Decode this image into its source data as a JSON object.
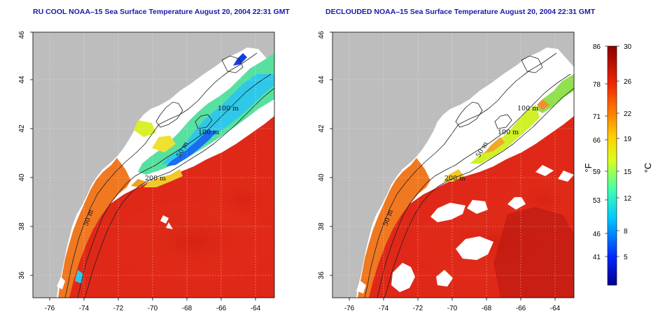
{
  "titles": {
    "left": "RU COOL NOAA–15 Sea Surface Temperature August 20, 2004 22:31 GMT",
    "right": "DECLOUDED NOAA–15 Sea Surface Temperature August 20, 2004 22:31 GMT"
  },
  "axes": {
    "lon_ticks": [
      "-76",
      "-74",
      "-72",
      "-70",
      "-68",
      "-66",
      "-64"
    ],
    "lat_ticks": [
      "36",
      "38",
      "40",
      "42",
      "44",
      "46"
    ]
  },
  "contours": {
    "label_100": "100 m",
    "label_200": "200 m",
    "label_50": "50 m"
  },
  "colorbar": {
    "fahrenheit_ticks": [
      "86",
      "78",
      "71",
      "66",
      "59",
      "53",
      "46",
      "41"
    ],
    "celsius_ticks": [
      "30",
      "26",
      "22",
      "19",
      "15",
      "12",
      "8",
      "5"
    ],
    "unit_f": "°F",
    "unit_c": "°C"
  },
  "colors": {
    "land": "#bdbdbd",
    "warm_water": "#e02818",
    "cloud": "#ffffff",
    "title": "#1a1aa8"
  }
}
